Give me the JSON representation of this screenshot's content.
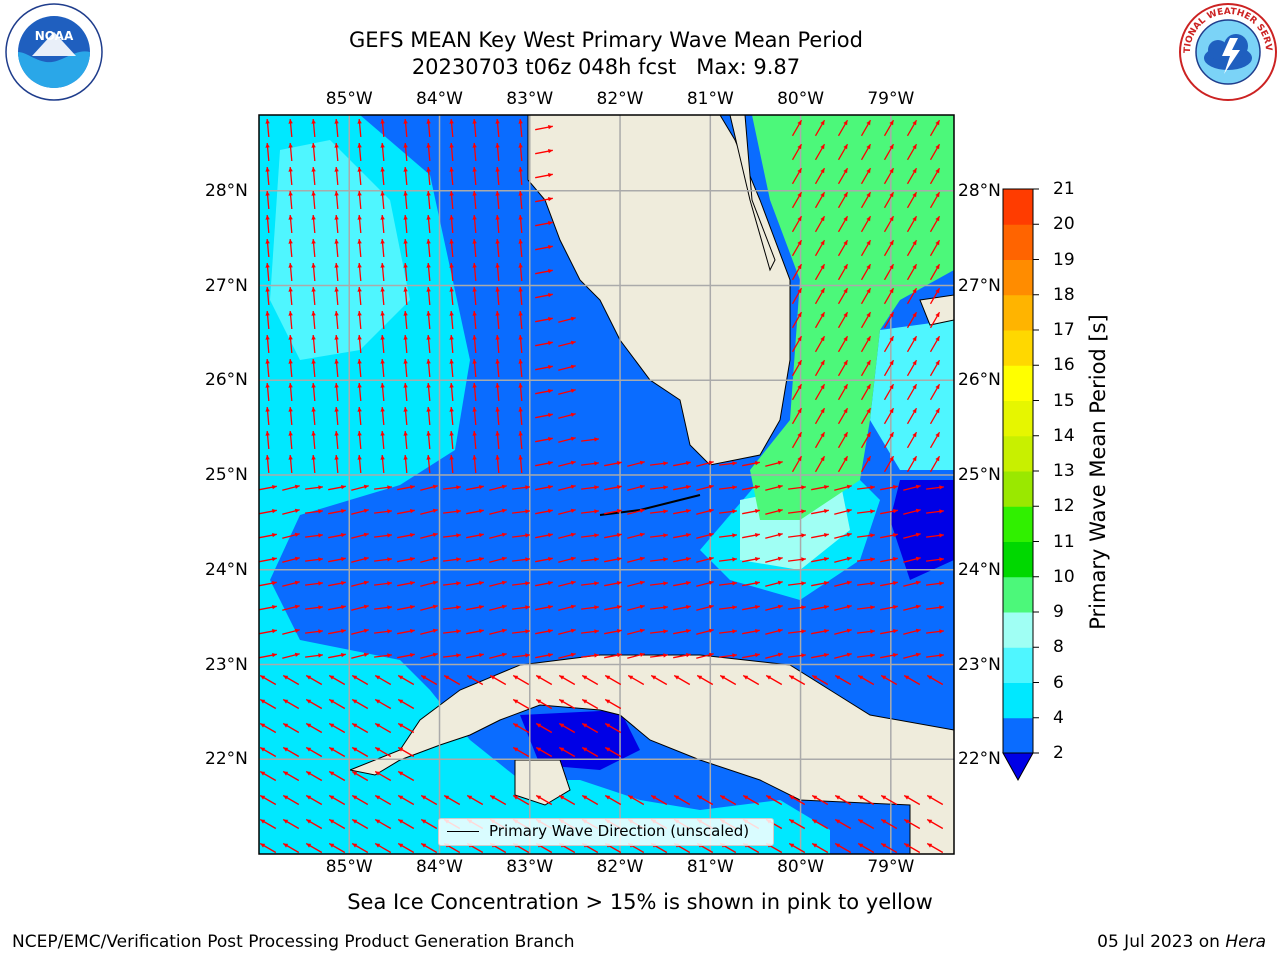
{
  "title": {
    "line1": "GEFS MEAN Key West Primary Wave Mean Period",
    "line2": "20230703 t06z 048h fcst   Max: 9.87"
  },
  "map": {
    "lon_labels": [
      "85°W",
      "84°W",
      "83°W",
      "82°W",
      "81°W",
      "80°W",
      "79°W"
    ],
    "lat_labels": [
      "28°N",
      "27°N",
      "26°N",
      "25°N",
      "24°N",
      "23°N",
      "22°N"
    ],
    "lon_range": [
      -86.0,
      -78.3
    ],
    "lat_range": [
      21.0,
      28.8
    ],
    "legend_label": "Primary Wave Direction (unscaled)",
    "vector_color": "#ff0000",
    "land_color": "#efecdc"
  },
  "colorbar": {
    "label": "Primary Wave Mean Period [s]",
    "ticks": [
      "2",
      "4",
      "6",
      "8",
      "9",
      "10",
      "11",
      "12",
      "13",
      "14",
      "15",
      "16",
      "17",
      "18",
      "19",
      "20",
      "21"
    ],
    "colors": [
      "#0a6cff",
      "#00e8ff",
      "#4ff6ff",
      "#a0fff4",
      "#4cf87a",
      "#00d800",
      "#30f000",
      "#9ae800",
      "#c8f000",
      "#e6f600",
      "#ffff00",
      "#ffd800",
      "#ffb400",
      "#ff8c00",
      "#ff6400",
      "#ff3c00",
      "#ff0000"
    ],
    "extend_color": "#0000e6"
  },
  "note": "Sea Ice Concentration > 15% is shown in pink to yellow",
  "footer": {
    "left": "NCEP/EMC/Verification Post Processing Product Generation Branch",
    "date": "05 Jul 2023 on ",
    "host": "Hera"
  },
  "logos": {
    "noaa_text": "NOAA",
    "nws_text": "NATIONAL WEATHER SERVICE"
  }
}
